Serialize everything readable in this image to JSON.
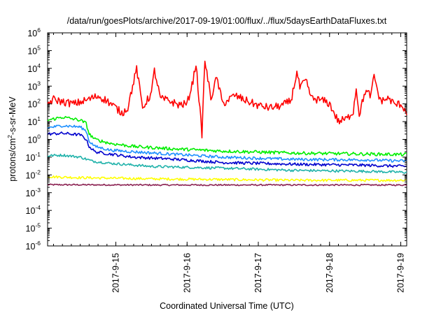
{
  "chart_data": {
    "type": "line",
    "title": "/data/run/goesPlots/archive/2017-09-19/01:00/flux/../flux/5daysEarthDataFluxes.txt",
    "xlabel": "Coordinated Universal Time (UTC)",
    "ylabel": {
      "prefix": "protons/cm",
      "superscript": "2",
      "suffix": "-s-sr-MeV"
    },
    "yscale": "log",
    "ylim_exponents": [
      -6,
      6
    ],
    "yticks": [
      {
        "base": "10",
        "exp": "6"
      },
      {
        "base": "10",
        "exp": "5"
      },
      {
        "base": "10",
        "exp": "4"
      },
      {
        "base": "10",
        "exp": "3"
      },
      {
        "base": "10",
        "exp": "2"
      },
      {
        "base": "10",
        "exp": "1"
      },
      {
        "base": "10",
        "exp": "0"
      },
      {
        "base": "10",
        "exp": "-1"
      },
      {
        "base": "10",
        "exp": "-2"
      },
      {
        "base": "10",
        "exp": "-3"
      },
      {
        "base": "10",
        "exp": "-4"
      },
      {
        "base": "10",
        "exp": "-5"
      },
      {
        "base": "10",
        "exp": "-6"
      }
    ],
    "xlim": [
      "2017-09-14T01:00",
      "2017-09-19T02:00"
    ],
    "xticks": [
      {
        "label": "2017-9-15",
        "t": "2017-09-15T00:00"
      },
      {
        "label": "2017-9-16",
        "t": "2017-09-16T00:00"
      },
      {
        "label": "2017-9-17",
        "t": "2017-09-17T00:00"
      },
      {
        "label": "2017-9-18",
        "t": "2017-09-18T00:00"
      },
      {
        "label": "2017-9-19",
        "t": "2017-09-19T00:00"
      }
    ],
    "grid": false,
    "legend": "none",
    "series": [
      {
        "color": "#ff0000",
        "noise_decades": 0.22,
        "points": [
          [
            "2017-09-14T01:00",
            100
          ],
          [
            "2017-09-14T03:00",
            180
          ],
          [
            "2017-09-14T06:00",
            130
          ],
          [
            "2017-09-14T10:00",
            100
          ],
          [
            "2017-09-14T14:00",
            160
          ],
          [
            "2017-09-14T18:00",
            280
          ],
          [
            "2017-09-14T21:00",
            150
          ],
          [
            "2017-09-15T00:00",
            60
          ],
          [
            "2017-09-15T02:00",
            30
          ],
          [
            "2017-09-15T04:00",
            60
          ],
          [
            "2017-09-15T07:00",
            10000
          ],
          [
            "2017-09-15T09:00",
            60
          ],
          [
            "2017-09-15T12:00",
            400
          ],
          [
            "2017-09-15T13:00",
            8000
          ],
          [
            "2017-09-15T15:00",
            200
          ],
          [
            "2017-09-15T18:00",
            150
          ],
          [
            "2017-09-15T21:00",
            90
          ],
          [
            "2017-09-16T00:00",
            100
          ],
          [
            "2017-09-16T02:00",
            2000
          ],
          [
            "2017-09-16T03:00",
            20000
          ],
          [
            "2017-09-16T05:00",
            2
          ],
          [
            "2017-09-16T06:00",
            30000
          ],
          [
            "2017-09-16T08:00",
            200
          ],
          [
            "2017-09-16T10:00",
            3000
          ],
          [
            "2017-09-16T12:00",
            100
          ],
          [
            "2017-09-16T16:00",
            300
          ],
          [
            "2017-09-16T20:00",
            150
          ],
          [
            "2017-09-17T00:00",
            80
          ],
          [
            "2017-09-17T04:00",
            60
          ],
          [
            "2017-09-17T08:00",
            80
          ],
          [
            "2017-09-17T11:00",
            150
          ],
          [
            "2017-09-17T13:00",
            6000
          ],
          [
            "2017-09-17T14:00",
            800
          ],
          [
            "2017-09-17T16:00",
            2000
          ],
          [
            "2017-09-17T18:00",
            200
          ],
          [
            "2017-09-17T22:00",
            150
          ],
          [
            "2017-09-18T00:00",
            100
          ],
          [
            "2017-09-18T03:00",
            10
          ],
          [
            "2017-09-18T06:00",
            15
          ],
          [
            "2017-09-18T08:00",
            40
          ],
          [
            "2017-09-18T09:00",
            800
          ],
          [
            "2017-09-18T10:00",
            25
          ],
          [
            "2017-09-18T12:00",
            500
          ],
          [
            "2017-09-18T14:00",
            300
          ],
          [
            "2017-09-18T15:00",
            4000
          ],
          [
            "2017-09-18T17:00",
            150
          ],
          [
            "2017-09-18T20:00",
            200
          ],
          [
            "2017-09-18T22:00",
            90
          ],
          [
            "2017-09-19T00:00",
            100
          ],
          [
            "2017-09-19T02:00",
            35
          ]
        ]
      },
      {
        "color": "#00ee00",
        "noise_decades": 0.09,
        "points": [
          [
            "2017-09-14T01:00",
            12
          ],
          [
            "2017-09-14T06:00",
            18
          ],
          [
            "2017-09-14T12:00",
            12
          ],
          [
            "2017-09-14T14:00",
            8
          ],
          [
            "2017-09-14T15:00",
            2
          ],
          [
            "2017-09-14T17:00",
            1
          ],
          [
            "2017-09-14T22:00",
            0.6
          ],
          [
            "2017-09-15T06:00",
            0.4
          ],
          [
            "2017-09-15T18:00",
            0.3
          ],
          [
            "2017-09-16T12:00",
            0.22
          ],
          [
            "2017-09-17T12:00",
            0.17
          ],
          [
            "2017-09-18T12:00",
            0.15
          ],
          [
            "2017-09-19T02:00",
            0.14
          ]
        ]
      },
      {
        "color": "#1e90ff",
        "noise_decades": 0.08,
        "points": [
          [
            "2017-09-14T01:00",
            4.5
          ],
          [
            "2017-09-14T06:00",
            6
          ],
          [
            "2017-09-14T12:00",
            5
          ],
          [
            "2017-09-14T14:00",
            3
          ],
          [
            "2017-09-14T15:00",
            0.8
          ],
          [
            "2017-09-14T17:00",
            0.4
          ],
          [
            "2017-09-14T22:00",
            0.25
          ],
          [
            "2017-09-15T06:00",
            0.2
          ],
          [
            "2017-09-15T18:00",
            0.15
          ],
          [
            "2017-09-16T12:00",
            0.1
          ],
          [
            "2017-09-17T12:00",
            0.075
          ],
          [
            "2017-09-18T12:00",
            0.07
          ],
          [
            "2017-09-19T02:00",
            0.06
          ]
        ]
      },
      {
        "color": "#0000cd",
        "noise_decades": 0.08,
        "points": [
          [
            "2017-09-14T01:00",
            2
          ],
          [
            "2017-09-14T06:00",
            2.2
          ],
          [
            "2017-09-14T12:00",
            1.8
          ],
          [
            "2017-09-14T14:00",
            1
          ],
          [
            "2017-09-14T15:00",
            0.4
          ],
          [
            "2017-09-14T17:00",
            0.2
          ],
          [
            "2017-09-14T22:00",
            0.15
          ],
          [
            "2017-09-15T06:00",
            0.1
          ],
          [
            "2017-09-15T18:00",
            0.08
          ],
          [
            "2017-09-16T12:00",
            0.05
          ],
          [
            "2017-09-17T12:00",
            0.04
          ],
          [
            "2017-09-18T12:00",
            0.035
          ],
          [
            "2017-09-19T02:00",
            0.03
          ]
        ]
      },
      {
        "color": "#20b2aa",
        "noise_decades": 0.07,
        "points": [
          [
            "2017-09-14T01:00",
            0.12
          ],
          [
            "2017-09-14T06:00",
            0.13
          ],
          [
            "2017-09-14T12:00",
            0.1
          ],
          [
            "2017-09-14T16:00",
            0.06
          ],
          [
            "2017-09-14T22:00",
            0.045
          ],
          [
            "2017-09-15T12:00",
            0.03
          ],
          [
            "2017-09-16T12:00",
            0.024
          ],
          [
            "2017-09-17T12:00",
            0.018
          ],
          [
            "2017-09-18T12:00",
            0.016
          ],
          [
            "2017-09-19T02:00",
            0.014
          ]
        ]
      },
      {
        "color": "#ffff00",
        "noise_decades": 0.07,
        "points": [
          [
            "2017-09-14T01:00",
            0.008
          ],
          [
            "2017-09-14T12:00",
            0.007
          ],
          [
            "2017-09-15T12:00",
            0.006
          ],
          [
            "2017-09-16T12:00",
            0.0055
          ],
          [
            "2017-09-17T12:00",
            0.005
          ],
          [
            "2017-09-18T12:00",
            0.005
          ],
          [
            "2017-09-19T02:00",
            0.005
          ]
        ]
      },
      {
        "color": "#8b2252",
        "noise_decades": 0.04,
        "points": [
          [
            "2017-09-14T01:00",
            0.0028
          ],
          [
            "2017-09-15T12:00",
            0.0027
          ],
          [
            "2017-09-17T12:00",
            0.0027
          ],
          [
            "2017-09-19T02:00",
            0.0027
          ]
        ]
      }
    ]
  }
}
